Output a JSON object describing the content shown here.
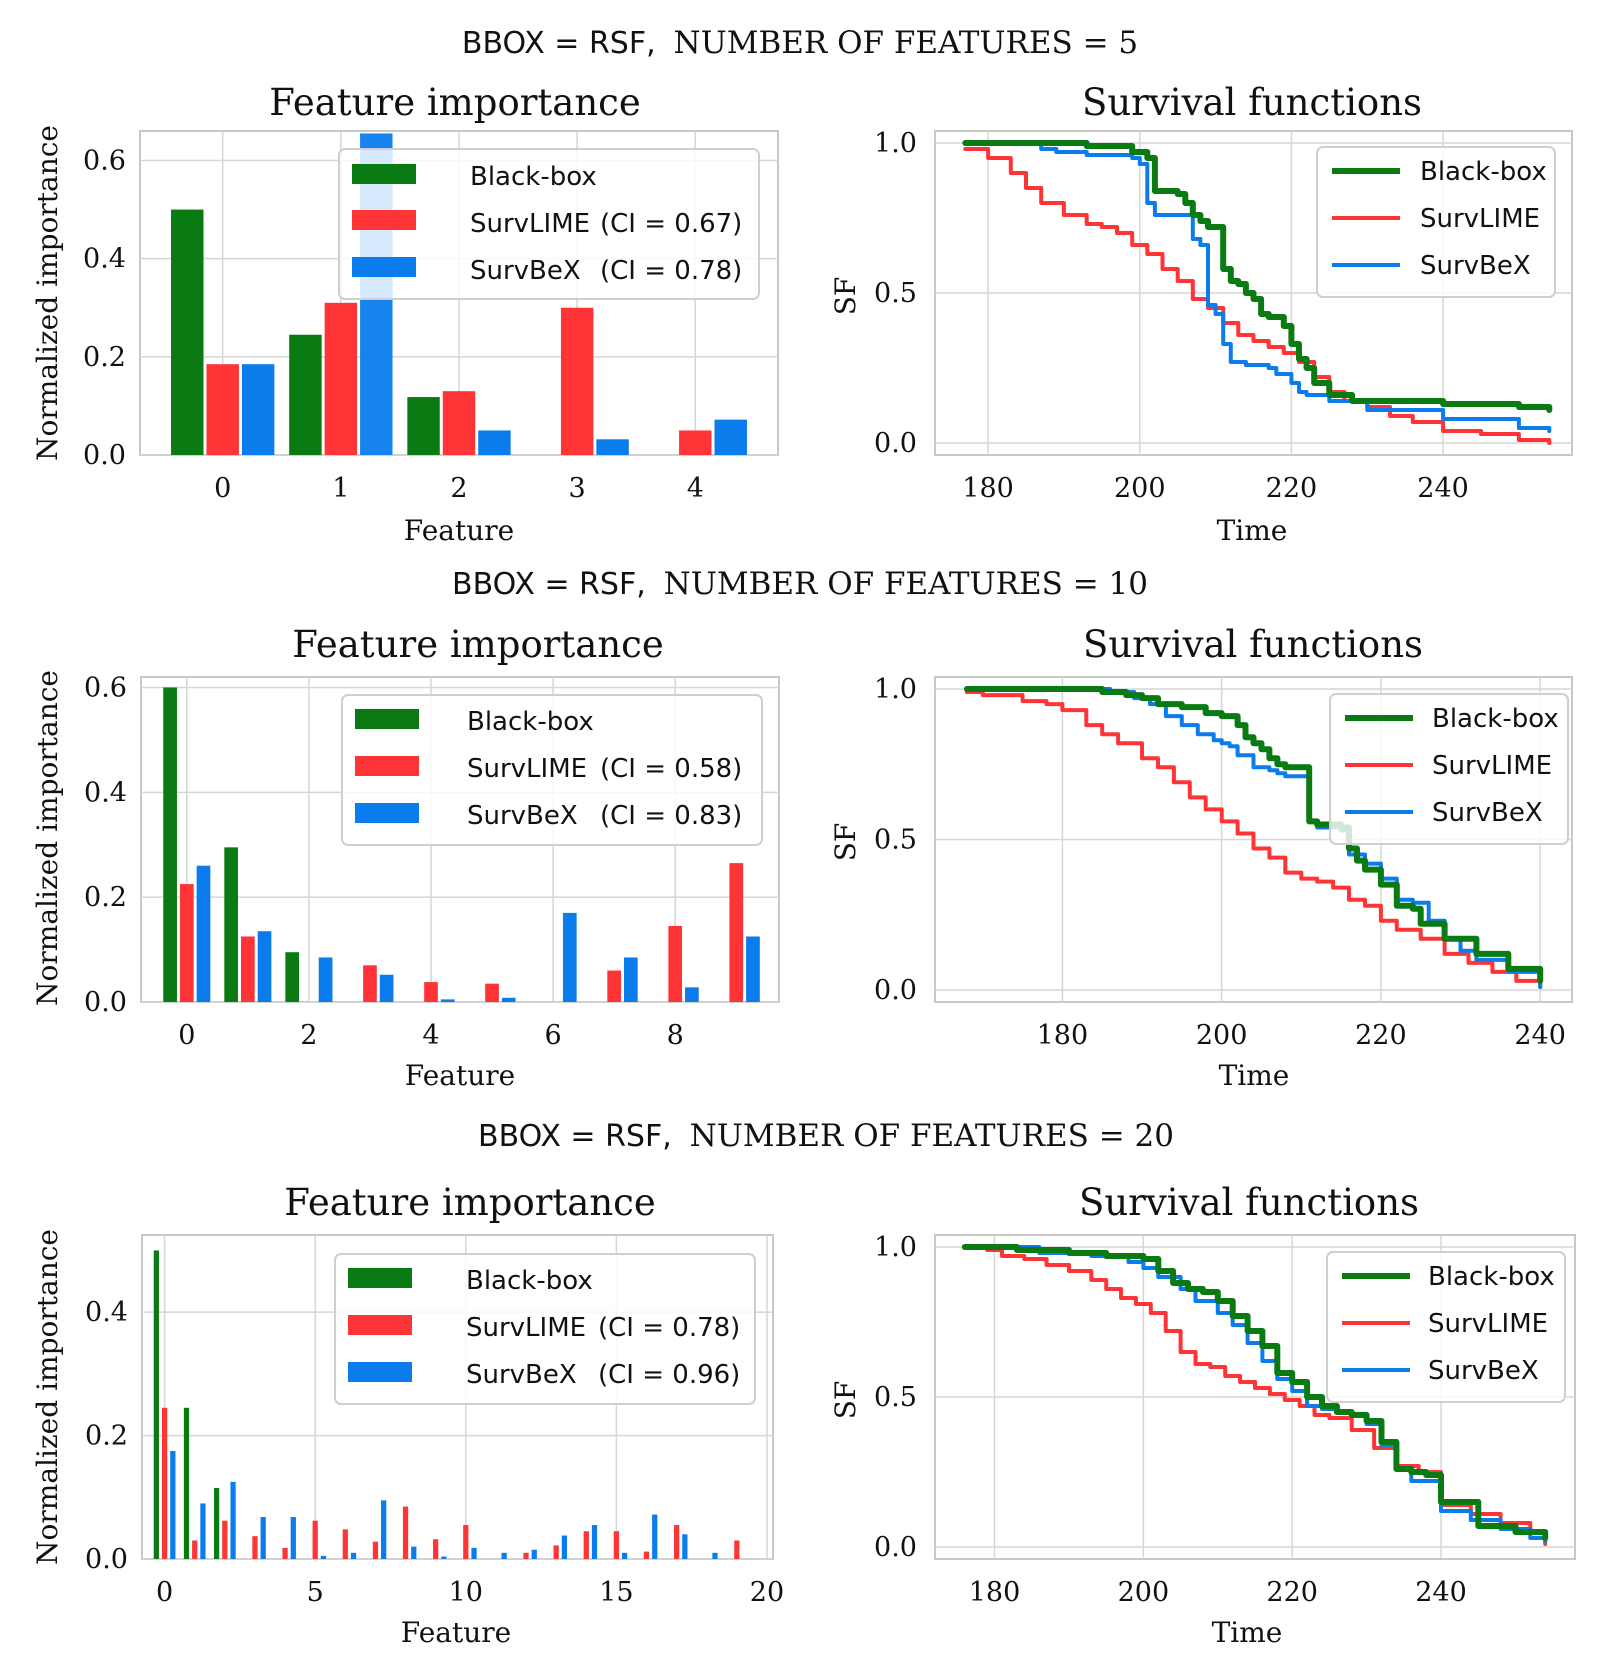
{
  "colors": {
    "black_box": "#0a7a12",
    "survlime": "#ff3437",
    "survbex": "#0b7cec",
    "grid": "#d6d6d6",
    "frame": "#c8c8c8"
  },
  "chart_data": [
    {
      "row_title": {
        "bbox_label": "BBOX = RSF,",
        "features_label": "NUMBER OF FEATURES = 5"
      },
      "importance": {
        "type": "bar",
        "title": "Feature importance",
        "xlabel": "Feature",
        "ylabel": "Normalized importance",
        "categories": [
          0,
          1,
          2,
          3,
          4
        ],
        "xticks": [
          "0",
          "1",
          "2",
          "3",
          "4"
        ],
        "yticks": [
          "0.0",
          "0.2",
          "0.4",
          "0.6"
        ],
        "ylim": [
          0,
          0.66
        ],
        "series": [
          {
            "name": "Black-box",
            "values": [
              0.5,
              0.245,
              0.118,
              0.0,
              0.0
            ]
          },
          {
            "name": "SurvLIME",
            "values": [
              0.185,
              0.31,
              0.13,
              0.3,
              0.05
            ]
          },
          {
            "name": "SurvBeX",
            "values": [
              0.185,
              0.655,
              0.05,
              0.032,
              0.072
            ]
          }
        ],
        "legend": [
          {
            "label": "Black-box",
            "ci": ""
          },
          {
            "label": "SurvLIME",
            "ci": "(CI = 0.67)"
          },
          {
            "label": "SurvBeX",
            "ci": "(CI = 0.78)"
          }
        ]
      },
      "survival": {
        "type": "line",
        "title": "Survival functions",
        "xlabel": "Time",
        "ylabel": "SF",
        "xlim": [
          173,
          257
        ],
        "ylim": [
          -0.04,
          1.04
        ],
        "xticks": [
          180,
          200,
          220,
          240
        ],
        "yticks": [
          "0.0",
          "0.5",
          "1.0"
        ],
        "series": [
          {
            "name": "Black-box",
            "x": [
              177,
              190,
              193,
              199,
              201,
              202,
              205,
              206,
              207,
              208,
              209,
              211,
              212,
              213,
              214,
              215,
              216,
              217,
              218,
              219,
              220,
              221,
              222,
              223,
              225,
              228,
              230,
              240,
              250,
              254
            ],
            "y": [
              1.0,
              1.0,
              0.99,
              0.97,
              0.95,
              0.84,
              0.83,
              0.8,
              0.76,
              0.74,
              0.72,
              0.58,
              0.54,
              0.53,
              0.5,
              0.48,
              0.43,
              0.42,
              0.42,
              0.39,
              0.33,
              0.28,
              0.25,
              0.2,
              0.16,
              0.14,
              0.14,
              0.13,
              0.12,
              0.11
            ]
          },
          {
            "name": "SurvLIME",
            "x": [
              177,
              180,
              183,
              185,
              187,
              190,
              193,
              195,
              197,
              199,
              201,
              203,
              205,
              207,
              209,
              211,
              213,
              215,
              217,
              219,
              221,
              223,
              225,
              227,
              230,
              233,
              236,
              240,
              245,
              250,
              254
            ],
            "y": [
              0.98,
              0.95,
              0.9,
              0.85,
              0.8,
              0.76,
              0.73,
              0.72,
              0.7,
              0.66,
              0.63,
              0.58,
              0.54,
              0.48,
              0.45,
              0.4,
              0.36,
              0.34,
              0.32,
              0.3,
              0.27,
              0.22,
              0.17,
              0.14,
              0.12,
              0.09,
              0.07,
              0.04,
              0.03,
              0.01,
              0.0
            ]
          },
          {
            "name": "SurvBeX",
            "x": [
              177,
              185,
              187,
              189,
              193,
              199,
              200,
              201,
              202,
              203,
              204,
              205,
              207,
              208,
              209,
              210,
              211,
              212,
              213,
              214,
              215,
              216,
              217,
              218,
              220,
              221,
              222,
              225,
              230,
              240,
              250,
              254
            ],
            "y": [
              1.0,
              1.0,
              0.98,
              0.97,
              0.96,
              0.95,
              0.93,
              0.8,
              0.76,
              0.76,
              0.76,
              0.76,
              0.68,
              0.66,
              0.46,
              0.43,
              0.33,
              0.27,
              0.27,
              0.26,
              0.26,
              0.26,
              0.25,
              0.23,
              0.2,
              0.17,
              0.16,
              0.14,
              0.11,
              0.08,
              0.05,
              0.04
            ]
          }
        ],
        "legend": [
          "Black-box",
          "SurvLIME",
          "SurvBeX"
        ]
      }
    },
    {
      "row_title": {
        "bbox_label": "BBOX = RSF,",
        "features_label": "NUMBER OF FEATURES = 10"
      },
      "importance": {
        "type": "bar",
        "title": "Feature importance",
        "xlabel": "Feature",
        "ylabel": "Normalized importance",
        "categories": [
          0,
          1,
          2,
          3,
          4,
          5,
          6,
          7,
          8,
          9
        ],
        "xticks": [
          "0",
          "2",
          "4",
          "6",
          "8"
        ],
        "xtick_values": [
          0,
          2,
          4,
          6,
          8
        ],
        "yticks": [
          "0.0",
          "0.2",
          "0.4",
          "0.6"
        ],
        "ylim": [
          0,
          0.62
        ],
        "series": [
          {
            "name": "Black-box",
            "values": [
              0.6,
              0.295,
              0.095,
              0.0,
              0.0,
              0.0,
              0.0,
              0.0,
              0.0,
              0.0
            ]
          },
          {
            "name": "SurvLIME",
            "values": [
              0.225,
              0.125,
              0.0,
              0.07,
              0.038,
              0.035,
              0.0,
              0.06,
              0.145,
              0.265
            ]
          },
          {
            "name": "SurvBeX",
            "values": [
              0.26,
              0.135,
              0.085,
              0.052,
              0.005,
              0.008,
              0.17,
              0.085,
              0.028,
              0.125
            ]
          }
        ],
        "legend": [
          {
            "label": "Black-box",
            "ci": ""
          },
          {
            "label": "SurvLIME",
            "ci": "(CI = 0.58)"
          },
          {
            "label": "SurvBeX",
            "ci": "(CI = 0.83)"
          }
        ]
      },
      "survival": {
        "type": "line",
        "title": "Survival functions",
        "xlabel": "Time",
        "ylabel": "SF",
        "xlim": [
          164,
          244
        ],
        "ylim": [
          -0.04,
          1.04
        ],
        "xticks": [
          180,
          200,
          220,
          240
        ],
        "yticks": [
          "0.0",
          "0.5",
          "1.0"
        ],
        "series": [
          {
            "name": "Black-box",
            "x": [
              168,
              180,
              185,
              188,
              190,
              192,
              195,
              198,
              200,
              202,
              203,
              204,
              205,
              206,
              207,
              208,
              210,
              211,
              212,
              215,
              216,
              217,
              218,
              220,
              222,
              224,
              225,
              228,
              232,
              236,
              240
            ],
            "y": [
              1.0,
              1.0,
              0.99,
              0.98,
              0.97,
              0.95,
              0.94,
              0.92,
              0.91,
              0.88,
              0.84,
              0.82,
              0.8,
              0.77,
              0.75,
              0.74,
              0.74,
              0.56,
              0.55,
              0.54,
              0.47,
              0.43,
              0.4,
              0.35,
              0.28,
              0.27,
              0.22,
              0.17,
              0.12,
              0.07,
              0.03
            ]
          },
          {
            "name": "SurvLIME",
            "x": [
              168,
              170,
              175,
              178,
              180,
              183,
              185,
              187,
              190,
              192,
              194,
              196,
              198,
              200,
              202,
              204,
              206,
              208,
              210,
              212,
              214,
              216,
              218,
              220,
              222,
              225,
              228,
              231,
              234,
              237,
              240
            ],
            "y": [
              0.99,
              0.98,
              0.96,
              0.95,
              0.93,
              0.88,
              0.85,
              0.82,
              0.77,
              0.74,
              0.69,
              0.64,
              0.6,
              0.56,
              0.52,
              0.47,
              0.44,
              0.39,
              0.37,
              0.36,
              0.34,
              0.3,
              0.28,
              0.23,
              0.2,
              0.17,
              0.12,
              0.09,
              0.06,
              0.03,
              0.01
            ]
          },
          {
            "name": "SurvBeX",
            "x": [
              168,
              182,
              186,
              189,
              191,
              193,
              195,
              197,
              199,
              200,
              201,
              202,
              204,
              206,
              207,
              208,
              210,
              211,
              212,
              213,
              215,
              216,
              218,
              220,
              222,
              224,
              226,
              228,
              230,
              232,
              236,
              240
            ],
            "y": [
              1.0,
              1.0,
              0.99,
              0.97,
              0.95,
              0.91,
              0.88,
              0.85,
              0.83,
              0.82,
              0.81,
              0.78,
              0.74,
              0.73,
              0.72,
              0.71,
              0.71,
              0.56,
              0.54,
              0.54,
              0.53,
              0.45,
              0.42,
              0.37,
              0.3,
              0.29,
              0.23,
              0.17,
              0.13,
              0.1,
              0.06,
              0.01
            ]
          }
        ],
        "legend": [
          "Black-box",
          "SurvLIME",
          "SurvBeX"
        ]
      }
    },
    {
      "row_title": {
        "bbox_label": "BBOX = RSF,",
        "features_label": "NUMBER OF FEATURES = 20"
      },
      "importance": {
        "type": "bar",
        "title": "Feature importance",
        "xlabel": "Feature",
        "ylabel": "Normalized importance",
        "categories": [
          0,
          1,
          2,
          3,
          4,
          5,
          6,
          7,
          8,
          9,
          10,
          11,
          12,
          13,
          14,
          15,
          16,
          17,
          18,
          19
        ],
        "xticks": [
          "0",
          "5",
          "10",
          "15",
          "20"
        ],
        "xtick_values": [
          0,
          5,
          10,
          15,
          20
        ],
        "yticks": [
          "0.0",
          "0.2",
          "0.4"
        ],
        "ylim": [
          0,
          0.525
        ],
        "series": [
          {
            "name": "Black-box",
            "values": [
              0.5,
              0.245,
              0.115,
              0,
              0,
              0,
              0,
              0,
              0,
              0,
              0,
              0,
              0,
              0,
              0,
              0,
              0,
              0,
              0,
              0
            ]
          },
          {
            "name": "SurvLIME",
            "values": [
              0.245,
              0.03,
              0.062,
              0.037,
              0.018,
              0.062,
              0.048,
              0.028,
              0.085,
              0.032,
              0.055,
              0.0,
              0.01,
              0.022,
              0.045,
              0.045,
              0.012,
              0.055,
              0.0,
              0.03
            ]
          },
          {
            "name": "SurvBeX",
            "values": [
              0.175,
              0.09,
              0.125,
              0.068,
              0.068,
              0.005,
              0.01,
              0.095,
              0.02,
              0.004,
              0.018,
              0.01,
              0.015,
              0.038,
              0.055,
              0.01,
              0.072,
              0.04,
              0.01,
              0.0
            ]
          }
        ],
        "legend": [
          {
            "label": "Black-box",
            "ci": ""
          },
          {
            "label": "SurvLIME",
            "ci": "(CI = 0.78)"
          },
          {
            "label": "SurvBeX",
            "ci": "(CI = 0.96)"
          }
        ]
      },
      "survival": {
        "type": "line",
        "title": "Survival functions",
        "xlabel": "Time",
        "ylabel": "SF",
        "xlim": [
          172,
          258
        ],
        "ylim": [
          -0.04,
          1.04
        ],
        "xticks": [
          180,
          200,
          220,
          240
        ],
        "yticks": [
          "0.0",
          "0.5",
          "1.0"
        ],
        "series": [
          {
            "name": "Black-box",
            "x": [
              176,
              183,
              190,
              195,
              200,
              202,
              204,
              206,
              208,
              210,
              212,
              214,
              216,
              218,
              220,
              222,
              224,
              226,
              228,
              230,
              232,
              234,
              236,
              238,
              240,
              245,
              250,
              254
            ],
            "y": [
              1.0,
              0.99,
              0.98,
              0.97,
              0.96,
              0.92,
              0.88,
              0.86,
              0.85,
              0.82,
              0.77,
              0.72,
              0.67,
              0.58,
              0.55,
              0.5,
              0.47,
              0.45,
              0.44,
              0.42,
              0.35,
              0.26,
              0.25,
              0.24,
              0.15,
              0.07,
              0.05,
              0.03
            ]
          },
          {
            "name": "SurvLIME",
            "x": [
              176,
              179,
              181,
              184,
              187,
              190,
              193,
              195,
              197,
              199,
              201,
              203,
              205,
              207,
              209,
              211,
              213,
              215,
              217,
              219,
              221,
              223,
              225,
              228,
              231,
              234,
              237,
              240,
              244,
              248,
              252,
              254
            ],
            "y": [
              1.0,
              0.99,
              0.97,
              0.96,
              0.94,
              0.92,
              0.89,
              0.86,
              0.83,
              0.81,
              0.78,
              0.72,
              0.65,
              0.61,
              0.6,
              0.57,
              0.55,
              0.53,
              0.51,
              0.49,
              0.47,
              0.44,
              0.43,
              0.39,
              0.33,
              0.27,
              0.25,
              0.14,
              0.11,
              0.08,
              0.05,
              0.01
            ]
          },
          {
            "name": "SurvBeX",
            "x": [
              176,
              186,
              193,
              198,
              200,
              202,
              205,
              207,
              210,
              212,
              214,
              216,
              218,
              220,
              222,
              224,
              226,
              228,
              230,
              232,
              234,
              236,
              240,
              244,
              248,
              252,
              254
            ],
            "y": [
              1.0,
              0.98,
              0.97,
              0.95,
              0.93,
              0.9,
              0.86,
              0.82,
              0.78,
              0.74,
              0.68,
              0.62,
              0.56,
              0.52,
              0.47,
              0.46,
              0.45,
              0.44,
              0.41,
              0.34,
              0.26,
              0.22,
              0.12,
              0.09,
              0.06,
              0.03,
              0.02
            ]
          }
        ],
        "legend": [
          "Black-box",
          "SurvLIME",
          "SurvBeX"
        ]
      }
    }
  ]
}
